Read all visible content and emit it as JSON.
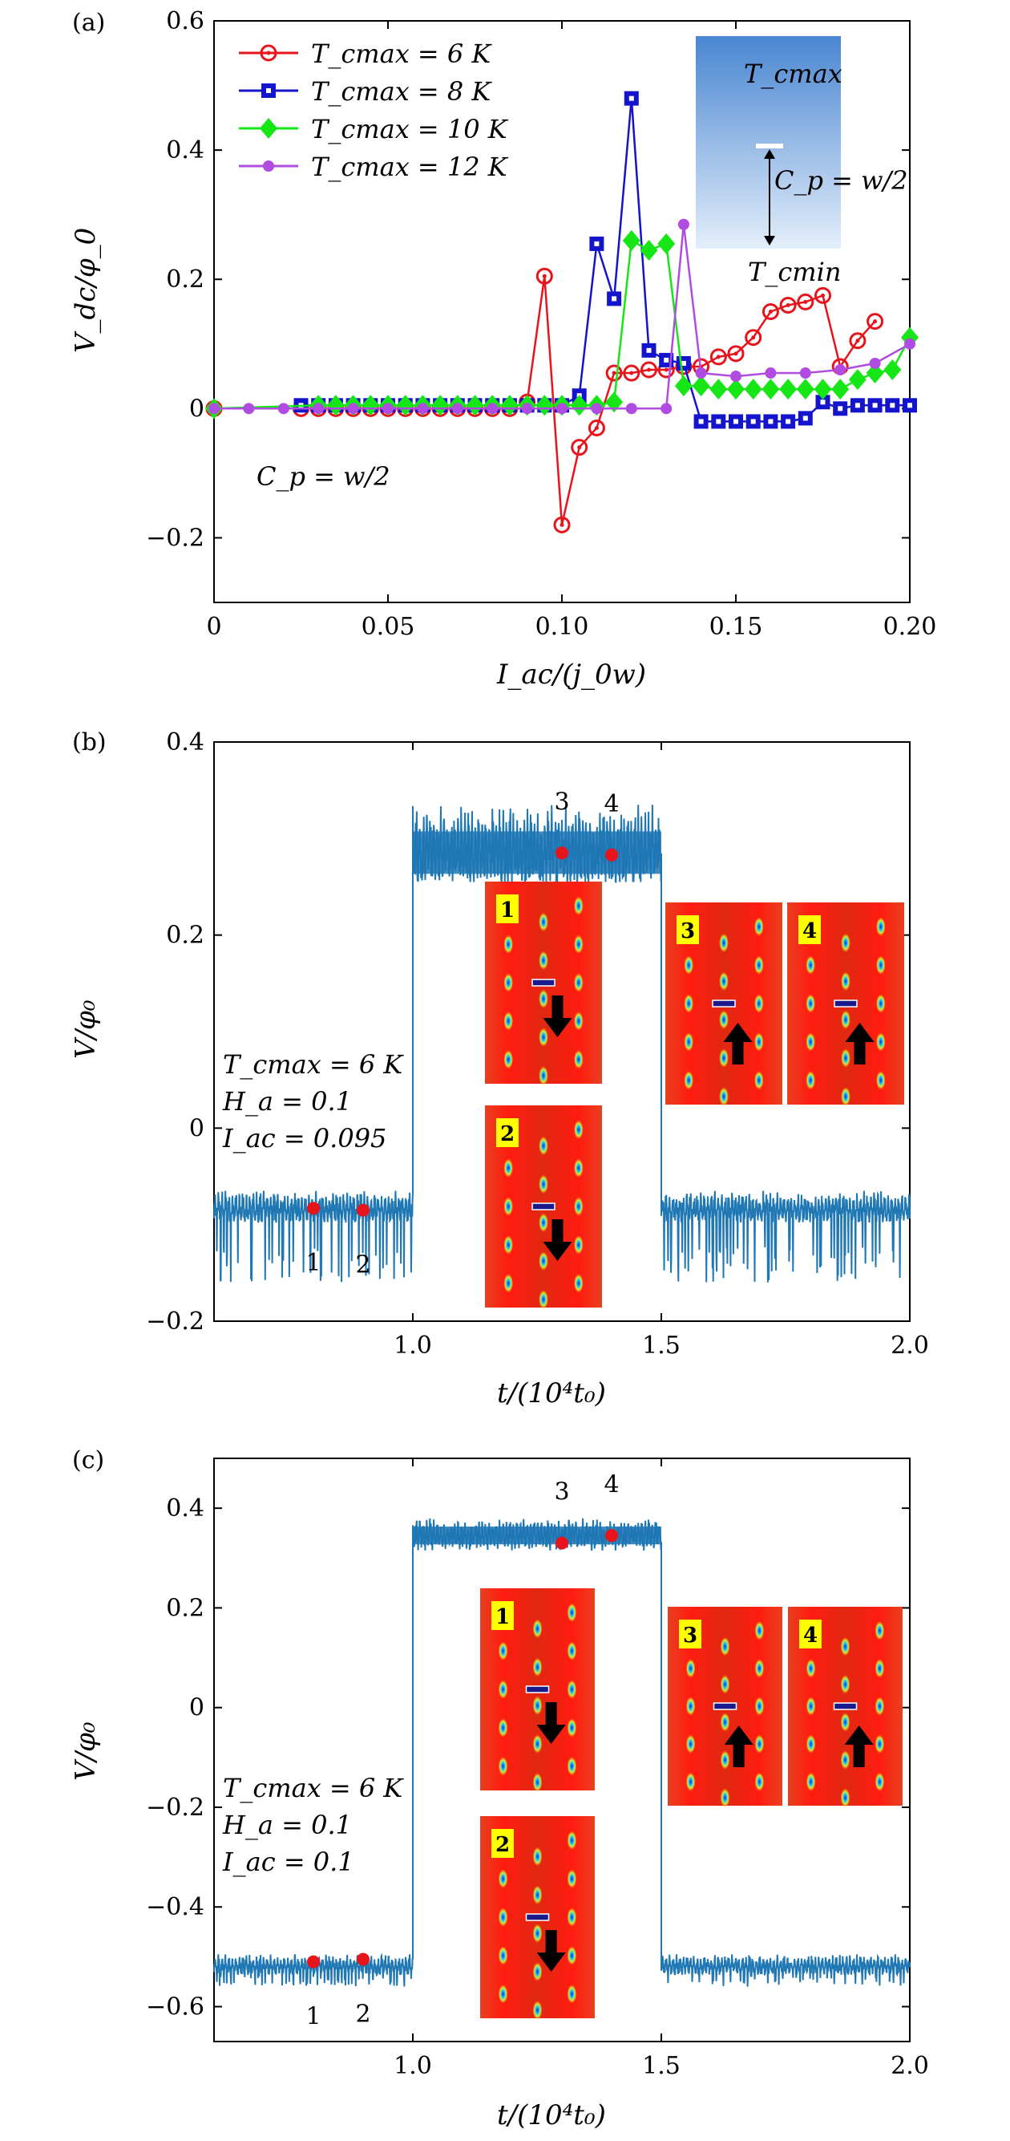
{
  "chart_data": [
    {
      "panel": "(a)",
      "type": "line",
      "xlabel": "I_ac/(j_0w)",
      "ylabel": "V_dc/φ_0",
      "xlim": [
        0,
        0.2
      ],
      "ylim": [
        -0.3,
        0.6
      ],
      "xticks": [
        "0",
        "0.05",
        "0.10",
        "0.15",
        "0.20"
      ],
      "yticks": [
        "−0.2",
        "0",
        "0.2",
        "0.4",
        "0.6"
      ],
      "xtick_values": [
        0,
        0.05,
        0.1,
        0.15,
        0.2
      ],
      "ytick_values": [
        -0.2,
        0,
        0.2,
        0.4,
        0.6
      ],
      "legend_position": "top-left",
      "annotation": "C_p = w/2",
      "inset": {
        "top_label": "T_cmax",
        "bottom_label": "T_cmin",
        "marker_label": "C_p = w/2"
      },
      "series": [
        {
          "name": "T_cmax = 6 K",
          "color": "#e8141c",
          "marker": "circle-open",
          "x": [
            0,
            0.025,
            0.03,
            0.035,
            0.04,
            0.045,
            0.05,
            0.055,
            0.06,
            0.065,
            0.07,
            0.075,
            0.08,
            0.085,
            0.09,
            0.095,
            0.1,
            0.105,
            0.11,
            0.115,
            0.12,
            0.125,
            0.13,
            0.135,
            0.14,
            0.145,
            0.15,
            0.155,
            0.16,
            0.165,
            0.17,
            0.175,
            0.18,
            0.185,
            0.19
          ],
          "y": [
            0,
            0,
            0,
            0,
            0,
            0,
            0,
            0,
            0,
            0,
            0,
            0,
            0,
            0,
            0.01,
            0.205,
            -0.18,
            -0.06,
            -0.03,
            0.055,
            0.055,
            0.06,
            0.06,
            0.065,
            0.065,
            0.08,
            0.085,
            0.11,
            0.15,
            0.16,
            0.165,
            0.175,
            0.065,
            0.105,
            0.135
          ]
        },
        {
          "name": "T_cmax = 8 K",
          "color": "#1414cc",
          "marker": "square",
          "x": [
            0.025,
            0.03,
            0.035,
            0.04,
            0.045,
            0.05,
            0.055,
            0.06,
            0.065,
            0.07,
            0.075,
            0.08,
            0.085,
            0.09,
            0.095,
            0.1,
            0.105,
            0.11,
            0.115,
            0.12,
            0.125,
            0.13,
            0.135,
            0.14,
            0.145,
            0.15,
            0.155,
            0.16,
            0.165,
            0.17,
            0.175,
            0.18,
            0.185,
            0.19,
            0.195,
            0.2
          ],
          "y": [
            0.005,
            0.005,
            0.005,
            0.005,
            0.005,
            0.005,
            0.005,
            0.005,
            0.005,
            0.005,
            0.005,
            0.005,
            0.005,
            0.005,
            0.005,
            0.005,
            0.02,
            0.255,
            0.17,
            0.48,
            0.09,
            0.075,
            0.07,
            -0.02,
            -0.02,
            -0.02,
            -0.02,
            -0.02,
            -0.02,
            -0.015,
            0.01,
            0,
            0.005,
            0.005,
            0.005,
            0.005
          ]
        },
        {
          "name": "T_cmax = 10 K",
          "color": "#16e616",
          "marker": "diamond",
          "x": [
            0,
            0.03,
            0.035,
            0.04,
            0.045,
            0.05,
            0.055,
            0.06,
            0.065,
            0.07,
            0.075,
            0.08,
            0.085,
            0.09,
            0.095,
            0.1,
            0.105,
            0.11,
            0.115,
            0.12,
            0.125,
            0.13,
            0.135,
            0.14,
            0.145,
            0.15,
            0.155,
            0.16,
            0.165,
            0.17,
            0.175,
            0.18,
            0.185,
            0.19,
            0.195,
            0.2
          ],
          "y": [
            0,
            0.005,
            0.005,
            0.005,
            0.005,
            0.005,
            0.005,
            0.005,
            0.005,
            0.005,
            0.005,
            0.005,
            0.005,
            0.005,
            0.005,
            0.005,
            0.005,
            0.005,
            0.01,
            0.26,
            0.245,
            0.255,
            0.035,
            0.035,
            0.03,
            0.03,
            0.03,
            0.03,
            0.03,
            0.03,
            0.03,
            0.03,
            0.045,
            0.055,
            0.06,
            0.11
          ]
        },
        {
          "name": "T_cmax = 12 K",
          "color": "#b04ce0",
          "marker": "circle-small",
          "x": [
            0,
            0.01,
            0.02,
            0.03,
            0.04,
            0.05,
            0.06,
            0.07,
            0.08,
            0.09,
            0.1,
            0.11,
            0.12,
            0.13,
            0.135,
            0.14,
            0.15,
            0.16,
            0.17,
            0.18,
            0.19,
            0.2
          ],
          "y": [
            0,
            0,
            0,
            0,
            0,
            0,
            0,
            0,
            0,
            0,
            0,
            0,
            0,
            0,
            0.285,
            0.055,
            0.05,
            0.055,
            0.055,
            0.06,
            0.07,
            0.1
          ]
        }
      ]
    },
    {
      "panel": "(b)",
      "type": "line",
      "xlabel": "t/(10⁴t₀)",
      "ylabel": "V/φ₀",
      "xlim": [
        0.6,
        2.0
      ],
      "ylim": [
        -0.2,
        0.4
      ],
      "xticks": [
        "1.0",
        "1.5",
        "2.0"
      ],
      "yticks": [
        "−0.2",
        "0",
        "0.2",
        "0.4"
      ],
      "xtick_values": [
        1.0,
        1.5,
        2.0
      ],
      "ytick_values": [
        -0.2,
        0,
        0.2,
        0.4
      ],
      "color": "#1f77b4",
      "segments": [
        {
          "x_range": [
            0.6,
            1.0
          ],
          "mean": -0.085,
          "noise_min": -0.16,
          "noise_max": -0.065
        },
        {
          "x_range": [
            1.0,
            1.5
          ],
          "mean": 0.285,
          "noise_min": 0.255,
          "noise_max": 0.335
        },
        {
          "x_range": [
            1.5,
            2.0
          ],
          "mean": -0.085,
          "noise_min": -0.16,
          "noise_max": -0.065
        }
      ],
      "annotations": [
        "T_cmax = 6 K",
        "H_a = 0.1",
        "I_ac = 0.095"
      ],
      "points": [
        {
          "label": "1",
          "x": 0.8,
          "y": -0.083
        },
        {
          "label": "2",
          "x": 0.9,
          "y": -0.085
        },
        {
          "label": "3",
          "x": 1.3,
          "y": 0.285
        },
        {
          "label": "4",
          "x": 1.4,
          "y": 0.283
        }
      ],
      "insets": [
        {
          "label": "1",
          "arrow": "down"
        },
        {
          "label": "2",
          "arrow": "down"
        },
        {
          "label": "3",
          "arrow": "up"
        },
        {
          "label": "4",
          "arrow": "up"
        }
      ]
    },
    {
      "panel": "(c)",
      "type": "line",
      "xlabel": "t/(10⁴t₀)",
      "ylabel": "V/φ₀",
      "xlim": [
        0.6,
        2.0
      ],
      "ylim": [
        -0.67,
        0.5
      ],
      "xticks": [
        "1.0",
        "1.5",
        "2.0"
      ],
      "yticks": [
        "−0.6",
        "−0.4",
        "−0.2",
        "0",
        "0.2",
        "0.4"
      ],
      "xtick_values": [
        1.0,
        1.5,
        2.0
      ],
      "ytick_values": [
        -0.6,
        -0.4,
        -0.2,
        0,
        0.2,
        0.4
      ],
      "color": "#1f77b4",
      "segments": [
        {
          "x_range": [
            0.6,
            1.0
          ],
          "mean": -0.52,
          "noise_min": -0.56,
          "noise_max": -0.495
        },
        {
          "x_range": [
            1.0,
            1.5
          ],
          "mean": 0.345,
          "noise_min": 0.315,
          "noise_max": 0.38
        },
        {
          "x_range": [
            1.5,
            2.0
          ],
          "mean": -0.52,
          "noise_min": -0.56,
          "noise_max": -0.495
        }
      ],
      "annotations": [
        "T_cmax = 6 K",
        "H_a = 0.1",
        "I_ac = 0.1"
      ],
      "points": [
        {
          "label": "1",
          "x": 0.8,
          "y": -0.51
        },
        {
          "label": "2",
          "x": 0.9,
          "y": -0.505
        },
        {
          "label": "3",
          "x": 1.3,
          "y": 0.33
        },
        {
          "label": "4",
          "x": 1.4,
          "y": 0.345
        }
      ],
      "insets": [
        {
          "label": "1",
          "arrow": "down"
        },
        {
          "label": "2",
          "arrow": "down"
        },
        {
          "label": "3",
          "arrow": "up"
        },
        {
          "label": "4",
          "arrow": "up"
        }
      ]
    }
  ],
  "colors": {
    "point_marker": "#e8141c",
    "inset_box": "#ffff00",
    "arrow": "#000000"
  }
}
